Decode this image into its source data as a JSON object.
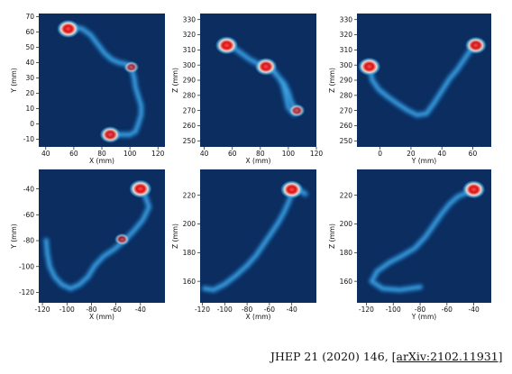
{
  "colors": {
    "background": "#0b2d60",
    "track_light": "#3fa7e6",
    "track_mid": "#1f6fb8",
    "hot": "#d9101a",
    "hot_core": "#ff4a3a"
  },
  "chart_data": [
    {
      "type": "heatmap",
      "id": "p1",
      "xlabel": "X (mm)",
      "ylabel": "Y (mm)",
      "xlim": [
        35,
        125
      ],
      "ylim": [
        -15,
        72
      ],
      "xticks": [
        "40",
        "60",
        "80",
        "100",
        "120"
      ],
      "xtick_values": [
        40,
        60,
        80,
        100,
        120
      ],
      "yticks": [
        "70",
        "60",
        "50",
        "40",
        "30",
        "20",
        "10",
        "0",
        "-10"
      ],
      "ytick_values": [
        70,
        60,
        50,
        40,
        30,
        20,
        10,
        0,
        -10
      ],
      "track": [
        [
          55,
          62
        ],
        [
          60,
          63
        ],
        [
          66,
          62
        ],
        [
          72,
          58
        ],
        [
          77,
          52
        ],
        [
          82,
          46
        ],
        [
          87,
          42
        ],
        [
          92,
          40
        ],
        [
          97,
          39
        ],
        [
          101,
          37
        ],
        [
          103,
          30
        ],
        [
          104,
          24
        ],
        [
          106,
          18
        ],
        [
          108,
          12
        ],
        [
          108,
          6
        ],
        [
          106,
          0
        ],
        [
          104,
          -5
        ],
        [
          100,
          -7
        ],
        [
          94,
          -7
        ],
        [
          88,
          -7
        ],
        [
          84,
          -7
        ]
      ],
      "hotspots": [
        {
          "x": 56,
          "y": 62,
          "s": 1.0
        },
        {
          "x": 86,
          "y": -7,
          "s": 0.85
        },
        {
          "x": 101,
          "y": 37,
          "s": 0.35
        }
      ]
    },
    {
      "type": "heatmap",
      "id": "p2",
      "xlabel": "X (mm)",
      "ylabel": "Z (mm)",
      "xlim": [
        37,
        120
      ],
      "ylim": [
        246,
        334
      ],
      "xticks": [
        "40",
        "60",
        "80",
        "100",
        "120"
      ],
      "xtick_values": [
        40,
        60,
        80,
        100,
        120
      ],
      "yticks": [
        "330",
        "320",
        "310",
        "300",
        "290",
        "280",
        "270",
        "260",
        "250"
      ],
      "ytick_values": [
        330,
        320,
        310,
        300,
        290,
        280,
        270,
        260,
        250
      ],
      "track": [
        [
          55,
          313
        ],
        [
          60,
          312
        ],
        [
          66,
          308
        ],
        [
          72,
          304
        ],
        [
          78,
          301
        ],
        [
          84,
          299
        ],
        [
          89,
          296
        ],
        [
          93,
          292
        ],
        [
          97,
          288
        ],
        [
          100,
          282
        ],
        [
          102,
          276
        ],
        [
          104,
          272
        ],
        [
          107,
          270
        ],
        [
          104,
          268
        ],
        [
          100,
          272
        ],
        [
          98,
          280
        ],
        [
          96,
          287
        ],
        [
          93,
          292
        ],
        [
          89,
          297
        ]
      ],
      "hotspots": [
        {
          "x": 56,
          "y": 313,
          "s": 1.0
        },
        {
          "x": 84,
          "y": 299,
          "s": 0.95
        },
        {
          "x": 106,
          "y": 270,
          "s": 0.45
        }
      ]
    },
    {
      "type": "heatmap",
      "id": "p3",
      "xlabel": "Y (mm)",
      "ylabel": "Z (mm)",
      "xlim": [
        -15,
        72
      ],
      "ylim": [
        246,
        334
      ],
      "xticks": [
        "0",
        "20",
        "40",
        "60"
      ],
      "xtick_values": [
        0,
        20,
        40,
        60
      ],
      "yticks": [
        "330",
        "320",
        "310",
        "300",
        "290",
        "280",
        "270",
        "260",
        "250"
      ],
      "ytick_values": [
        330,
        320,
        310,
        300,
        290,
        280,
        270,
        260,
        250
      ],
      "track": [
        [
          -7,
          299
        ],
        [
          -5,
          290
        ],
        [
          -1,
          284
        ],
        [
          5,
          279
        ],
        [
          12,
          274
        ],
        [
          18,
          270
        ],
        [
          24,
          267
        ],
        [
          30,
          268
        ],
        [
          35,
          275
        ],
        [
          40,
          283
        ],
        [
          45,
          291
        ],
        [
          50,
          297
        ],
        [
          54,
          303
        ],
        [
          58,
          309
        ],
        [
          62,
          313
        ]
      ],
      "hotspots": [
        {
          "x": -7,
          "y": 299,
          "s": 1.0
        },
        {
          "x": 62,
          "y": 313,
          "s": 0.9
        }
      ]
    },
    {
      "type": "heatmap",
      "id": "p4",
      "xlabel": "X (mm)",
      "ylabel": "Y (mm)",
      "xlim": [
        -123,
        -20
      ],
      "ylim": [
        -128,
        -25
      ],
      "xticks": [
        "-120",
        "-100",
        "-80",
        "-60",
        "-40"
      ],
      "xtick_values": [
        -120,
        -100,
        -80,
        -60,
        -40
      ],
      "yticks": [
        "-40",
        "-60",
        "-80",
        "-100",
        "-120"
      ],
      "ytick_values": [
        -40,
        -60,
        -80,
        -100,
        -120
      ],
      "track": [
        [
          -40,
          -40
        ],
        [
          -36,
          -46
        ],
        [
          -33,
          -54
        ],
        [
          -38,
          -64
        ],
        [
          -45,
          -72
        ],
        [
          -53,
          -80
        ],
        [
          -62,
          -87
        ],
        [
          -70,
          -92
        ],
        [
          -77,
          -99
        ],
        [
          -83,
          -108
        ],
        [
          -90,
          -114
        ],
        [
          -97,
          -117
        ],
        [
          -104,
          -114
        ],
        [
          -110,
          -108
        ],
        [
          -114,
          -100
        ],
        [
          -116,
          -90
        ],
        [
          -117,
          -80
        ]
      ],
      "hotspots": [
        {
          "x": -40,
          "y": -40,
          "s": 1.0
        },
        {
          "x": -55,
          "y": -79,
          "s": 0.35
        }
      ]
    },
    {
      "type": "heatmap",
      "id": "p5",
      "xlabel": "X (mm)",
      "ylabel": "Z (mm)",
      "xlim": [
        -122,
        -18
      ],
      "ylim": [
        145,
        238
      ],
      "xticks": [
        "-120",
        "-100",
        "-80",
        "-60",
        "-40"
      ],
      "xtick_values": [
        -120,
        -100,
        -80,
        -60,
        -40
      ],
      "yticks": [
        "220",
        "200",
        "180",
        "160"
      ],
      "ytick_values": [
        220,
        200,
        180,
        160
      ],
      "track": [
        [
          -118,
          155
        ],
        [
          -110,
          154
        ],
        [
          -100,
          158
        ],
        [
          -90,
          164
        ],
        [
          -80,
          171
        ],
        [
          -72,
          178
        ],
        [
          -65,
          186
        ],
        [
          -58,
          194
        ],
        [
          -52,
          201
        ],
        [
          -47,
          208
        ],
        [
          -43,
          215
        ],
        [
          -40,
          221
        ],
        [
          -34,
          224
        ],
        [
          -28,
          221
        ]
      ],
      "hotspots": [
        {
          "x": -40,
          "y": 224,
          "s": 1.0
        }
      ]
    },
    {
      "type": "heatmap",
      "id": "p6",
      "xlabel": "Y (mm)",
      "ylabel": "Z (mm)",
      "xlim": [
        -127,
        -27
      ],
      "ylim": [
        145,
        238
      ],
      "xticks": [
        "-120",
        "-100",
        "-80",
        "-60",
        "-40"
      ],
      "xtick_values": [
        -120,
        -100,
        -80,
        -60,
        -40
      ],
      "yticks": [
        "220",
        "200",
        "180",
        "160"
      ],
      "ytick_values": [
        220,
        200,
        180,
        160
      ],
      "track": [
        [
          -80,
          156
        ],
        [
          -95,
          154
        ],
        [
          -108,
          155
        ],
        [
          -116,
          160
        ],
        [
          -112,
          167
        ],
        [
          -103,
          173
        ],
        [
          -93,
          178
        ],
        [
          -84,
          183
        ],
        [
          -76,
          191
        ],
        [
          -70,
          199
        ],
        [
          -64,
          207
        ],
        [
          -58,
          214
        ],
        [
          -52,
          219
        ],
        [
          -45,
          222
        ],
        [
          -40,
          223
        ]
      ],
      "hotspots": [
        {
          "x": -40,
          "y": 224,
          "s": 1.0
        }
      ]
    }
  ],
  "citation": {
    "prefix": "JHEP 21 (2020) 146, ",
    "link": "[arXiv:2102.11931]"
  }
}
